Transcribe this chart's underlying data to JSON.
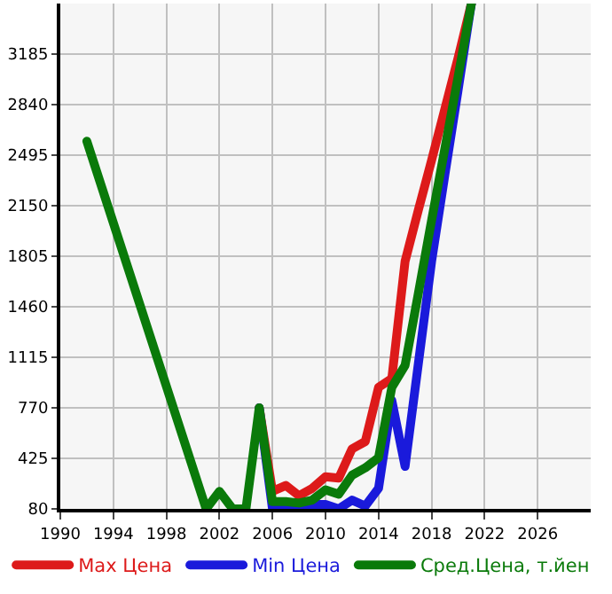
{
  "chart_data": {
    "type": "line",
    "xlim": [
      1990,
      2030
    ],
    "xticks": [
      1990,
      1994,
      1998,
      2002,
      2006,
      2010,
      2014,
      2018,
      2022,
      2026
    ],
    "ylim": [
      80,
      3530
    ],
    "yticks": [
      80,
      425,
      770,
      1115,
      1460,
      1805,
      2150,
      2495,
      2840,
      3185
    ],
    "grid": true,
    "legend": "bottom",
    "line_style": "solid",
    "marker": "none",
    "series": [
      {
        "name": "Max Цена",
        "color": "#dd1a1a",
        "x": [
          2005,
          2006,
          2007,
          2008,
          2009,
          2010,
          2011,
          2012,
          2013,
          2014,
          2015,
          2016,
          2017,
          2018,
          2019,
          2020,
          2021
        ],
        "values": [
          770,
          200,
          240,
          170,
          220,
          300,
          290,
          490,
          540,
          910,
          970,
          1770,
          2120,
          2460,
          2810,
          3160,
          3530
        ]
      },
      {
        "name": "Min Цена",
        "color": "#1a1adb",
        "x": [
          2005,
          2006,
          2007,
          2008,
          2009,
          2010,
          2011,
          2012,
          2013,
          2014,
          2015,
          2016,
          2017,
          2018,
          2019,
          2020,
          2021
        ],
        "values": [
          770,
          80,
          90,
          80,
          110,
          110,
          80,
          140,
          100,
          220,
          820,
          370,
          1070,
          1770,
          2360,
          2940,
          3530
        ]
      },
      {
        "name": "Сред.Цена, т.йен",
        "color": "#0a7a0a",
        "x": [
          1992,
          2001,
          2002,
          2003,
          2004,
          2005,
          2006,
          2007,
          2008,
          2009,
          2010,
          2011,
          2012,
          2013,
          2014,
          2015,
          2016,
          2017,
          2018,
          2019,
          2020,
          2021
        ],
        "values": [
          2590,
          80,
          200,
          80,
          80,
          770,
          130,
          130,
          120,
          140,
          210,
          180,
          310,
          360,
          430,
          910,
          1060,
          1550,
          2050,
          2540,
          3030,
          3530
        ]
      }
    ]
  }
}
